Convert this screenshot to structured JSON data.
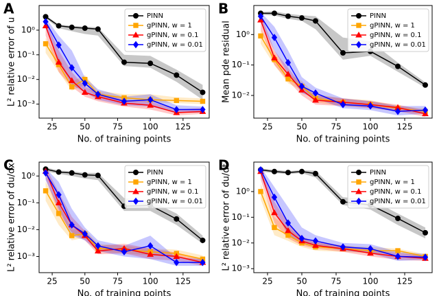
{
  "chart_data": [
    {
      "type": "line",
      "panel_label": "A",
      "ylabel": "L² relative error of u",
      "xlabel": "No. of training points",
      "yscale": "log",
      "legend": "upper right",
      "x": [
        20,
        30,
        40,
        50,
        60,
        80,
        100,
        120,
        140
      ],
      "xlim": [
        15,
        145
      ],
      "xticks": [
        25,
        50,
        75,
        100,
        125
      ],
      "ylim": [
        0.00027,
        10
      ],
      "yticks": [
        {
          "value": 0.001,
          "label": "10⁻³"
        },
        {
          "value": 0.01,
          "label": "10⁻²"
        },
        {
          "value": 0.1,
          "label": "10⁻¹"
        },
        {
          "value": 1,
          "label": "10⁰"
        }
      ],
      "series": [
        {
          "name": "PINN",
          "color": "#000000",
          "marker": "o",
          "values": [
            3.5,
            1.5,
            1.3,
            1.2,
            1.1,
            0.05,
            0.045,
            0.015,
            0.003
          ],
          "lower": [
            3.0,
            1.2,
            0.9,
            0.7,
            0.6,
            0.035,
            0.03,
            0.008,
            0.0015
          ],
          "upper": [
            4.0,
            1.7,
            1.5,
            1.4,
            1.3,
            0.1,
            0.09,
            0.025,
            0.006
          ]
        },
        {
          "name": "gPINN, w = 1",
          "color": "#ffa500",
          "marker": "s",
          "values": [
            0.28,
            0.04,
            0.005,
            0.01,
            0.0025,
            0.0018,
            0.0015,
            0.0014,
            0.0013
          ],
          "lower": [
            0.12,
            0.02,
            0.0035,
            0.006,
            0.0018,
            0.0013,
            0.0012,
            0.0011,
            0.001
          ],
          "upper": [
            0.5,
            0.08,
            0.008,
            0.015,
            0.0035,
            0.0025,
            0.0025,
            0.0019,
            0.0017
          ]
        },
        {
          "name": "gPINN, w = 0.1",
          "color": "#ff0000",
          "marker": "^",
          "values": [
            1.5,
            0.05,
            0.009,
            0.003,
            0.002,
            0.0011,
            0.0009,
            0.00045,
            0.0005
          ],
          "lower": [
            0.6,
            0.02,
            0.005,
            0.002,
            0.0013,
            0.0008,
            0.0006,
            0.00035,
            0.0004
          ],
          "upper": [
            2.5,
            0.15,
            0.02,
            0.005,
            0.003,
            0.0015,
            0.0013,
            0.0006,
            0.0007
          ]
        },
        {
          "name": "gPINN, w = 0.01",
          "color": "#0000ff",
          "marker": "D",
          "values": [
            2.2,
            0.25,
            0.03,
            0.007,
            0.0025,
            0.0013,
            0.0015,
            0.0006,
            0.0006
          ],
          "lower": [
            1.2,
            0.05,
            0.006,
            0.003,
            0.0015,
            0.0009,
            0.0008,
            0.00045,
            0.00045
          ],
          "upper": [
            3.2,
            0.6,
            0.15,
            0.012,
            0.004,
            0.002,
            0.0025,
            0.0009,
            0.0008
          ]
        }
      ]
    },
    {
      "type": "line",
      "panel_label": "B",
      "ylabel": "Mean pde residual",
      "xlabel": "No. of training points",
      "yscale": "log",
      "legend": "upper right",
      "x": [
        20,
        30,
        40,
        50,
        60,
        80,
        100,
        120,
        140
      ],
      "xlim": [
        15,
        145
      ],
      "xticks": [
        25,
        50,
        75,
        100,
        125
      ],
      "ylim": [
        0.0018,
        9
      ],
      "yticks": [
        {
          "value": 0.01,
          "label": "10⁻²"
        },
        {
          "value": 0.1,
          "label": "10⁻¹"
        },
        {
          "value": 1,
          "label": "10⁰"
        }
      ],
      "series": [
        {
          "name": "PINN",
          "color": "#000000",
          "marker": "o",
          "values": [
            5,
            5,
            4,
            3.5,
            2.8,
            0.25,
            0.28,
            0.09,
            0.022
          ],
          "lower": [
            4.5,
            4.2,
            3.3,
            2.8,
            1.5,
            0.15,
            0.2,
            0.06,
            0.018
          ],
          "upper": [
            5.5,
            5.8,
            4.8,
            4.3,
            4,
            0.8,
            0.6,
            0.12,
            0.027
          ]
        },
        {
          "name": "gPINN, w = 1",
          "color": "#ffa500",
          "marker": "s",
          "values": [
            0.9,
            0.15,
            0.035,
            0.02,
            0.008,
            0.006,
            0.005,
            0.0038,
            0.003
          ],
          "lower": [
            0.5,
            0.1,
            0.025,
            0.015,
            0.006,
            0.0045,
            0.004,
            0.003,
            0.0025
          ],
          "upper": [
            1.5,
            0.25,
            0.05,
            0.03,
            0.011,
            0.008,
            0.007,
            0.0045,
            0.0037
          ]
        },
        {
          "name": "gPINN, w = 0.1",
          "color": "#ff0000",
          "marker": "^",
          "values": [
            3,
            0.17,
            0.05,
            0.015,
            0.007,
            0.006,
            0.005,
            0.004,
            0.0025
          ],
          "lower": [
            1.5,
            0.1,
            0.03,
            0.01,
            0.005,
            0.0045,
            0.0038,
            0.003,
            0.002
          ],
          "upper": [
            5,
            0.3,
            0.08,
            0.022,
            0.01,
            0.008,
            0.0065,
            0.005,
            0.0032
          ]
        },
        {
          "name": "gPINN, w = 0.01",
          "color": "#0000ff",
          "marker": "D",
          "values": [
            4,
            0.8,
            0.12,
            0.02,
            0.012,
            0.005,
            0.0045,
            0.003,
            0.0033
          ],
          "lower": [
            2.5,
            0.3,
            0.05,
            0.012,
            0.008,
            0.0038,
            0.0033,
            0.0022,
            0.0025
          ],
          "upper": [
            5.5,
            1.8,
            0.3,
            0.04,
            0.018,
            0.008,
            0.0065,
            0.0045,
            0.0045
          ]
        }
      ]
    },
    {
      "type": "line",
      "panel_label": "C",
      "ylabel": "L² relative error of du/dx",
      "xlabel": "No. of training points",
      "yscale": "log",
      "legend": "upper right",
      "x": [
        20,
        30,
        40,
        50,
        60,
        80,
        100,
        120,
        140
      ],
      "xlim": [
        15,
        145
      ],
      "xticks": [
        25,
        50,
        75,
        100,
        125
      ],
      "ylim": [
        0.00025,
        3.3
      ],
      "yticks": [
        {
          "value": 0.001,
          "label": "10⁻³"
        },
        {
          "value": 0.01,
          "label": "10⁻²"
        },
        {
          "value": 0.1,
          "label": "10⁻¹"
        },
        {
          "value": 1,
          "label": "10⁰"
        }
      ],
      "series": [
        {
          "name": "PINN",
          "color": "#000000",
          "marker": "o",
          "values": [
            1.8,
            1.4,
            1.3,
            1.1,
            1.05,
            0.075,
            0.08,
            0.025,
            0.004
          ],
          "lower": [
            1.5,
            1.2,
            1.0,
            0.8,
            0.7,
            0.05,
            0.05,
            0.015,
            0.003
          ],
          "upper": [
            2.1,
            1.6,
            1.5,
            1.3,
            1.3,
            0.15,
            0.12,
            0.04,
            0.006
          ]
        },
        {
          "name": "gPINN, w = 1",
          "color": "#ffa500",
          "marker": "s",
          "values": [
            0.28,
            0.04,
            0.006,
            0.007,
            0.002,
            0.0018,
            0.0015,
            0.0013,
            0.0008
          ],
          "lower": [
            0.12,
            0.015,
            0.004,
            0.005,
            0.0015,
            0.0013,
            0.0011,
            0.001,
            0.0006
          ],
          "upper": [
            0.6,
            0.09,
            0.01,
            0.01,
            0.003,
            0.0025,
            0.002,
            0.0018,
            0.0011
          ]
        },
        {
          "name": "gPINN, w = 0.1",
          "color": "#ff0000",
          "marker": "^",
          "values": [
            1.5,
            0.1,
            0.015,
            0.006,
            0.0016,
            0.002,
            0.0012,
            0.001,
            0.0006
          ],
          "lower": [
            0.8,
            0.04,
            0.008,
            0.004,
            0.0012,
            0.0013,
            0.0008,
            0.0007,
            0.00045
          ],
          "upper": [
            2.2,
            0.25,
            0.03,
            0.009,
            0.0025,
            0.003,
            0.002,
            0.0014,
            0.0008
          ]
        },
        {
          "name": "gPINN, w = 0.01",
          "color": "#0000ff",
          "marker": "D",
          "values": [
            1.3,
            0.2,
            0.015,
            0.007,
            0.0025,
            0.0015,
            0.0025,
            0.0006,
            0.0006
          ],
          "lower": [
            0.7,
            0.06,
            0.006,
            0.004,
            0.0016,
            0.001,
            0.0008,
            0.00045,
            0.00045
          ],
          "upper": [
            2.0,
            0.6,
            0.06,
            0.012,
            0.004,
            0.0025,
            0.006,
            0.0009,
            0.0008
          ]
        }
      ]
    },
    {
      "type": "line",
      "panel_label": "D",
      "ylabel": "L² relative error of du/dt",
      "xlabel": "No. of training points",
      "yscale": "log",
      "legend": "upper right",
      "x": [
        20,
        30,
        40,
        50,
        60,
        80,
        100,
        120,
        140
      ],
      "xlim": [
        15,
        145
      ],
      "xticks": [
        25,
        50,
        75,
        100,
        125
      ],
      "ylim": [
        0.0007,
        14
      ],
      "yticks": [
        {
          "value": 0.001,
          "label": "10⁻³"
        },
        {
          "value": 0.01,
          "label": "10⁻²"
        },
        {
          "value": 0.1,
          "label": "10⁻¹"
        },
        {
          "value": 1,
          "label": "10⁰"
        }
      ],
      "series": [
        {
          "name": "PINN",
          "color": "#000000",
          "marker": "o",
          "values": [
            7,
            6,
            5.5,
            6,
            5,
            0.4,
            0.3,
            0.09,
            0.025
          ],
          "lower": [
            6,
            5.2,
            4.8,
            5.2,
            3.5,
            0.3,
            0.2,
            0.05,
            0.015
          ],
          "upper": [
            8,
            7,
            6.3,
            6.8,
            6.5,
            0.6,
            0.5,
            0.14,
            0.04
          ]
        },
        {
          "name": "gPINN, w = 1",
          "color": "#ffa500",
          "marker": "s",
          "values": [
            1.0,
            0.04,
            0.02,
            0.01,
            0.007,
            0.006,
            0.005,
            0.005,
            0.003
          ],
          "lower": [
            0.5,
            0.02,
            0.012,
            0.007,
            0.005,
            0.0045,
            0.004,
            0.004,
            0.0025
          ],
          "upper": [
            2.0,
            0.1,
            0.04,
            0.015,
            0.01,
            0.008,
            0.007,
            0.006,
            0.0037
          ]
        },
        {
          "name": "gPINN, w = 0.1",
          "color": "#ff0000",
          "marker": "^",
          "values": [
            6,
            0.15,
            0.03,
            0.012,
            0.008,
            0.006,
            0.004,
            0.003,
            0.0025
          ],
          "lower": [
            3,
            0.06,
            0.015,
            0.008,
            0.006,
            0.0045,
            0.003,
            0.0022,
            0.002
          ],
          "upper": [
            8,
            0.4,
            0.06,
            0.018,
            0.011,
            0.008,
            0.0055,
            0.004,
            0.0032
          ]
        },
        {
          "name": "gPINN, w = 0.01",
          "color": "#0000ff",
          "marker": "D",
          "values": [
            7,
            0.6,
            0.06,
            0.015,
            0.012,
            0.007,
            0.006,
            0.003,
            0.0028
          ],
          "lower": [
            4,
            0.2,
            0.02,
            0.01,
            0.008,
            0.005,
            0.004,
            0.002,
            0.0022
          ],
          "upper": [
            9,
            1.5,
            0.25,
            0.04,
            0.02,
            0.01,
            0.009,
            0.0045,
            0.0037
          ]
        }
      ]
    }
  ]
}
